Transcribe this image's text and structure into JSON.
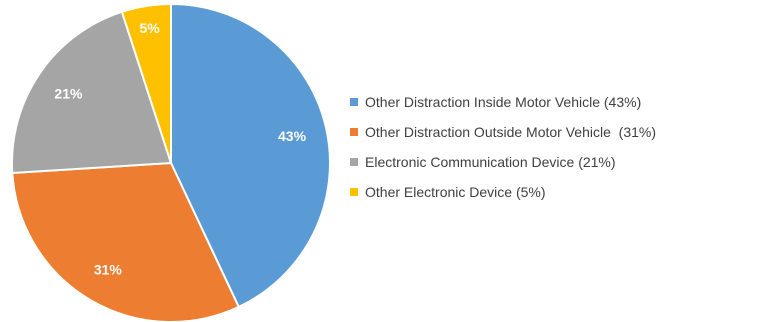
{
  "chart_data": {
    "type": "pie",
    "categories": [
      "Other Distraction Inside Motor Vehicle",
      "Other Distraction Outside Motor Vehicle",
      "Electronic Communication Device",
      "Other Electronic Device"
    ],
    "values": [
      43,
      31,
      21,
      5
    ],
    "slice_labels": [
      "43%",
      "31%",
      "21%",
      "5%"
    ],
    "colors": [
      "#5B9BD5",
      "#ED7D31",
      "#A5A5A5",
      "#FFC000"
    ],
    "legend": {
      "placement": "right",
      "entries": [
        "Other Distraction Inside Motor Vehicle (43%)",
        "Other Distraction Outside Motor Vehicle  (31%)",
        "Electronic Communication Device (21%)",
        "Other Electronic Device (5%)"
      ]
    },
    "start_angle": "12 o'clock",
    "direction": "clockwise"
  }
}
